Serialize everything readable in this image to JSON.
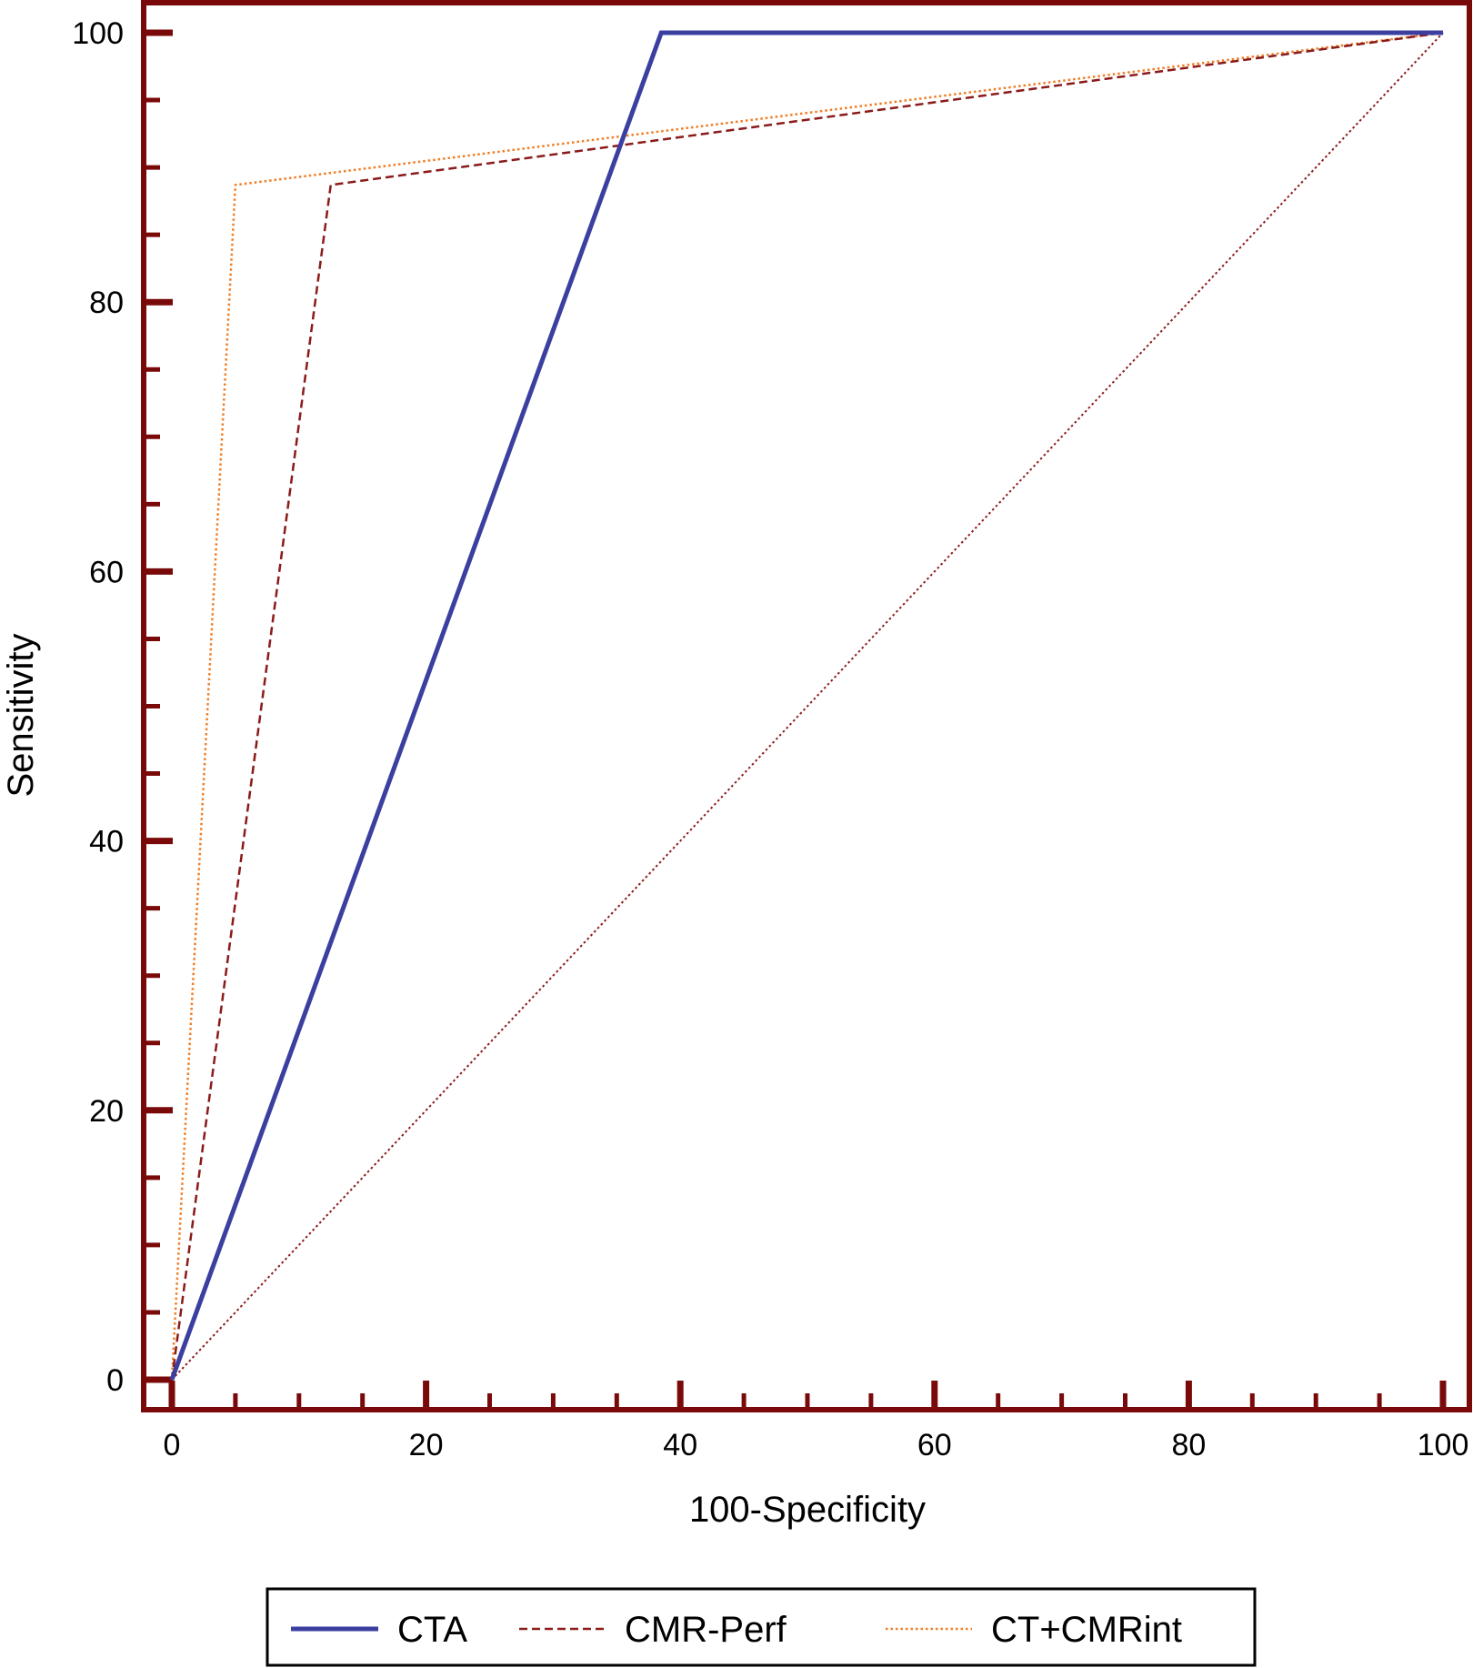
{
  "chart_data": {
    "type": "line",
    "title": "",
    "xlabel": "100-Specificity",
    "ylabel": "Sensitivity",
    "xlim": [
      0,
      100
    ],
    "ylim": [
      0,
      100
    ],
    "x_ticks": [
      0,
      20,
      40,
      60,
      80,
      100
    ],
    "y_ticks": [
      0,
      20,
      40,
      60,
      80,
      100
    ],
    "x_tick_labels": [
      "0",
      "20",
      "40",
      "60",
      "80",
      "100"
    ],
    "y_tick_labels": [
      "0",
      "20",
      "40",
      "60",
      "80",
      "100"
    ],
    "grid": false,
    "legend_position": "bottom",
    "frame_color": "#7a0a0a",
    "series": [
      {
        "name": "CTA",
        "color": "#3b3fa0",
        "style": "solid",
        "x": [
          0,
          38.5,
          100
        ],
        "y": [
          0,
          100,
          100
        ]
      },
      {
        "name": "CMR-Perf",
        "color": "#8b1a1a",
        "style": "dashed",
        "x": [
          0,
          12.5,
          100
        ],
        "y": [
          0,
          88.7,
          100
        ]
      },
      {
        "name": "CT+CMRint",
        "color": "#f07e26",
        "style": "dotted",
        "x": [
          0,
          5,
          100
        ],
        "y": [
          0,
          88.7,
          100
        ]
      }
    ],
    "reference_line": {
      "color": "#8b1a1a",
      "style": "dotted",
      "x": [
        0,
        100
      ],
      "y": [
        0,
        100
      ]
    }
  }
}
